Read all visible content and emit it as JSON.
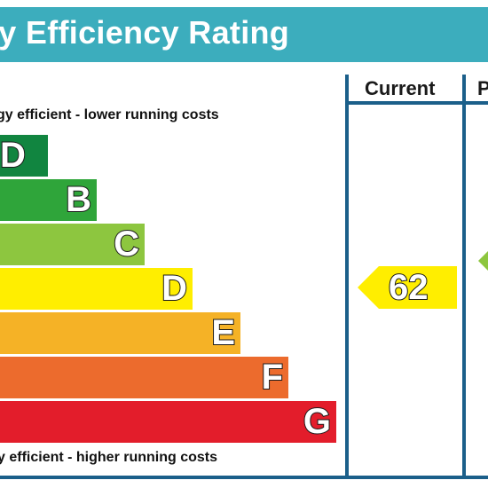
{
  "title": "gy Efficiency Rating",
  "columns": {
    "current": "Current",
    "potential": "P"
  },
  "captions": {
    "top": "gy efficient - lower running costs",
    "bottom": "y efficient - higher running costs"
  },
  "chart_data": {
    "type": "bar",
    "title": "gy Efficiency Rating",
    "categories": [
      "A",
      "B",
      "C",
      "D",
      "E",
      "F",
      "G"
    ],
    "band_letters": [
      "D A",
      "B",
      "C",
      "D",
      "E",
      "F",
      "G"
    ],
    "band_colors": [
      "#118540",
      "#2fa53a",
      "#8dc63f",
      "#ffee00",
      "#f5b226",
      "#ec6b2d",
      "#e31d2b"
    ],
    "current_rating": 62,
    "current_band": "D",
    "current_color": "#ffee00",
    "potential_color": "#8dc63f"
  }
}
